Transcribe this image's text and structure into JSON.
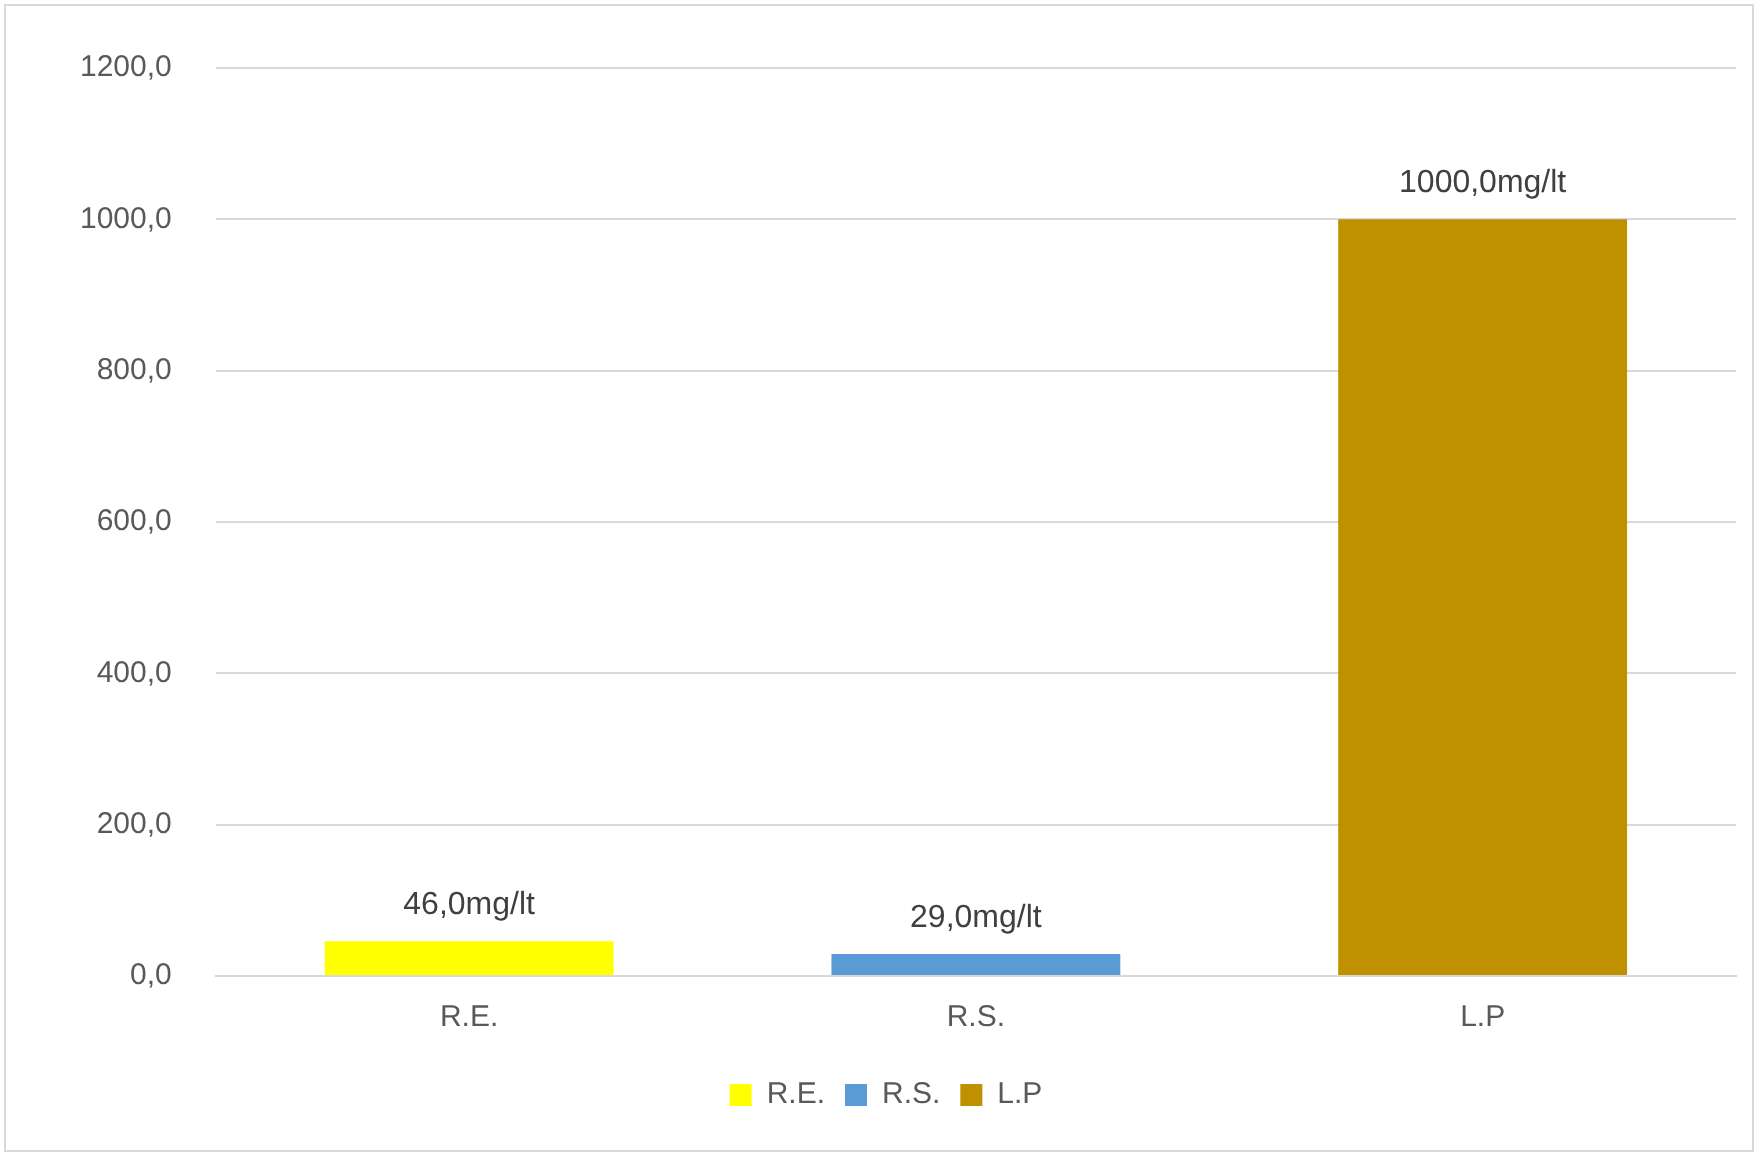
{
  "chart_data": {
    "type": "bar",
    "categories": [
      "R.E.",
      "R.S.",
      "L.P"
    ],
    "series": [
      {
        "name": "R.E.",
        "color": "#ffff00",
        "values": [
          46,
          null,
          null
        ],
        "value_labels": [
          "46,0mg/lt",
          null,
          null
        ]
      },
      {
        "name": "R.S.",
        "color": "#5b9bd5",
        "values": [
          null,
          29,
          null
        ],
        "value_labels": [
          null,
          "29,0mg/lt",
          null
        ]
      },
      {
        "name": "L.P",
        "color": "#bf9000",
        "values": [
          null,
          null,
          1000
        ],
        "value_labels": [
          null,
          null,
          "1000,0mg/lt"
        ]
      }
    ],
    "ylim": [
      0,
      1200
    ],
    "yticks": [
      {
        "value": 0,
        "label": "0,0"
      },
      {
        "value": 200,
        "label": "200,0"
      },
      {
        "value": 400,
        "label": "400,0"
      },
      {
        "value": 600,
        "label": "600,0"
      },
      {
        "value": 800,
        "label": "800,0"
      },
      {
        "value": 1000,
        "label": "1000,0"
      },
      {
        "value": 1200,
        "label": "1200,0"
      }
    ],
    "grid": "y",
    "legend": "bottom"
  }
}
